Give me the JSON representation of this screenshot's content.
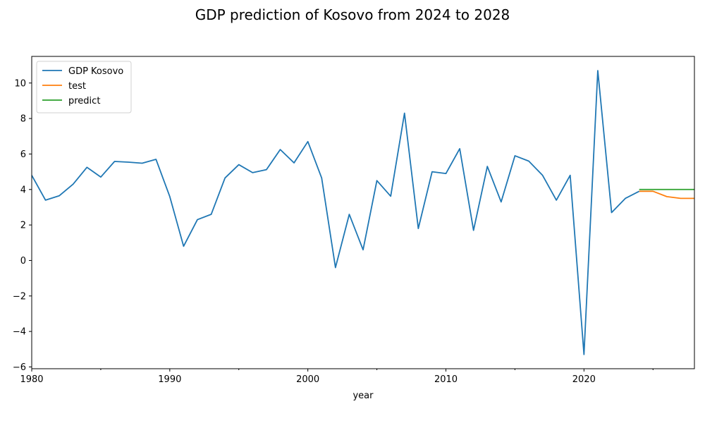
{
  "chart_data": {
    "type": "line",
    "title": "GDP prediction of Kosovo from 2024 to 2028",
    "xlabel": "year",
    "ylabel": "",
    "xlim": [
      1980,
      2028
    ],
    "ylim": [
      -6.1,
      11.5
    ],
    "xticks": [
      1980,
      1990,
      2000,
      2010,
      2020
    ],
    "yticks": [
      -6,
      -4,
      -2,
      0,
      2,
      4,
      6,
      8,
      10
    ],
    "grid": false,
    "legend_position": "top-left",
    "series": [
      {
        "name": "GDP Kosovo",
        "color": "#1f77b4",
        "x": [
          1980,
          1981,
          1982,
          1983,
          1984,
          1985,
          1986,
          1987,
          1988,
          1989,
          1990,
          1991,
          1992,
          1993,
          1994,
          1995,
          1996,
          1997,
          1998,
          1999,
          2000,
          2001,
          2002,
          2003,
          2004,
          2005,
          2006,
          2007,
          2008,
          2009,
          2010,
          2011,
          2012,
          2013,
          2014,
          2015,
          2016,
          2017,
          2018,
          2019,
          2020,
          2021,
          2022,
          2023,
          2024
        ],
        "y": [
          4.8,
          3.4,
          3.65,
          4.3,
          5.25,
          4.7,
          5.58,
          5.54,
          5.48,
          5.7,
          3.6,
          0.8,
          2.3,
          2.6,
          4.65,
          5.4,
          4.95,
          5.12,
          6.25,
          5.5,
          6.7,
          4.65,
          -0.4,
          2.6,
          0.6,
          4.5,
          3.62,
          8.3,
          1.8,
          5.0,
          4.9,
          6.3,
          1.7,
          5.3,
          3.3,
          5.9,
          5.6,
          4.8,
          3.4,
          4.8,
          -5.3,
          10.7,
          2.7,
          3.5,
          3.9
        ]
      },
      {
        "name": "test",
        "color": "#ff7f0e",
        "x": [
          2024,
          2025,
          2026,
          2027,
          2028
        ],
        "y": [
          3.9,
          3.9,
          3.6,
          3.5,
          3.5
        ]
      },
      {
        "name": "predict",
        "color": "#2ca02c",
        "x": [
          2024,
          2025,
          2026,
          2027,
          2028
        ],
        "y": [
          4.0,
          4.0,
          4.0,
          4.0,
          4.0
        ]
      }
    ]
  }
}
